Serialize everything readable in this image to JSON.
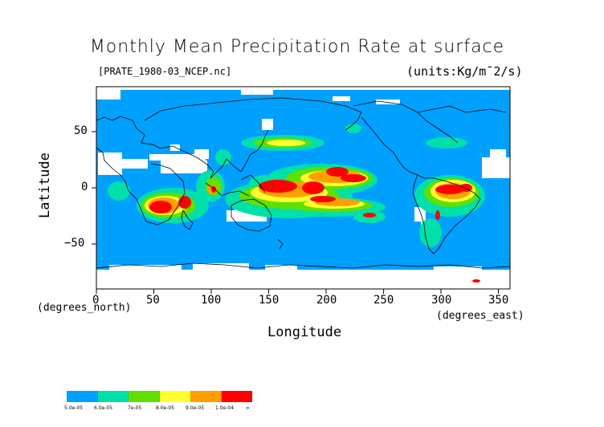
{
  "title": "Monthly Mean Precipitation Rate at surface",
  "file_label": "[PRATE_1980-03_NCEP.nc]",
  "units_label": "(units:Kg/m¯2/s)",
  "axes": {
    "x_label": "Longitude",
    "x_unit": "(degrees_east)",
    "y_label": "Latitude",
    "y_unit": "(degrees_north)",
    "x_ticks": [
      "0",
      "50",
      "100",
      "150",
      "200",
      "250",
      "300",
      "350"
    ],
    "y_ticks": [
      "50",
      "0",
      "−50"
    ],
    "x_range": [
      0,
      360
    ],
    "y_range": [
      -90,
      90
    ]
  },
  "colors": {
    "ocean_bg": "#00a0ff",
    "white_gap": "#ffffff",
    "teal": "#00e0a8",
    "green": "#5fe000",
    "yellow": "#ffff30",
    "orange": "#ffa000",
    "red": "#ff0000",
    "coast": "#000000"
  },
  "colorbar": {
    "segments": [
      "#00a0ff",
      "#00e0a8",
      "#5fe000",
      "#ffff30",
      "#ffa000",
      "#ff0000"
    ],
    "labels": [
      "5.0e-05",
      "6.0e-05",
      "7e-05",
      "8.0e-05",
      "9.0e-05",
      "1.0e-04",
      "∞"
    ]
  }
}
